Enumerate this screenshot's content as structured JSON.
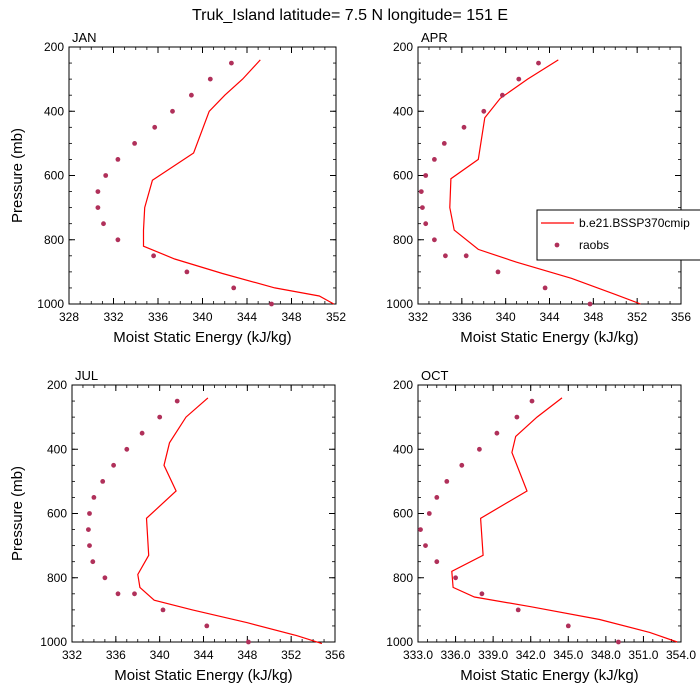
{
  "figure_title": "Truk_Island  latitude= 7.5 N longitude= 151 E",
  "colors": {
    "model_line": "#ff0000",
    "obs_marker": "#b0305a",
    "axis": "#000000"
  },
  "legend": {
    "placement": "right, between top-right and bottom-right panels",
    "entries": [
      {
        "label": "b.e21.BSSP370cmip",
        "style": "line"
      },
      {
        "label": "raobs",
        "style": "marker"
      }
    ]
  },
  "chart_data": [
    {
      "type": "line",
      "panel_label": "JAN",
      "xlabel": "Moist Static Energy (kJ/kg)",
      "ylabel": "Pressure (mb)",
      "xlim": [
        328,
        352
      ],
      "ylim": [
        1000,
        200
      ],
      "xticks": [
        "328",
        "332",
        "336",
        "340",
        "344",
        "348",
        "352"
      ],
      "yticks": [
        "200",
        "400",
        "600",
        "800",
        "1000"
      ],
      "series": [
        {
          "name": "b.e21.BSSP370cmip",
          "style": "line",
          "x": [
            345.2,
            343.6,
            342.0,
            340.6,
            339.2,
            335.5,
            334.8,
            334.7,
            334.7,
            337.5,
            341.8,
            346.5,
            350.5,
            351.8
          ],
          "y": [
            240,
            300,
            350,
            400,
            530,
            615,
            700,
            770,
            820,
            860,
            905,
            950,
            975,
            1000
          ]
        },
        {
          "name": "raobs",
          "style": "marker",
          "x": [
            342.6,
            340.7,
            339.0,
            337.3,
            335.7,
            333.9,
            332.4,
            331.3,
            330.6,
            330.6,
            331.1,
            332.4,
            335.6,
            338.6,
            342.8,
            346.2
          ],
          "y": [
            250,
            300,
            350,
            400,
            450,
            500,
            550,
            600,
            650,
            700,
            750,
            800,
            850,
            900,
            950,
            1000
          ]
        }
      ]
    },
    {
      "type": "line",
      "panel_label": "APR",
      "xlabel": "Moist Static Energy (kJ/kg)",
      "ylabel": "",
      "xlim": [
        332,
        356
      ],
      "ylim": [
        1000,
        200
      ],
      "xticks": [
        "332",
        "336",
        "340",
        "344",
        "348",
        "352",
        "356"
      ],
      "yticks": [
        "200",
        "400",
        "600",
        "800",
        "1000"
      ],
      "series": [
        {
          "name": "b.e21.BSSP370cmip",
          "style": "line",
          "x": [
            344.8,
            342.0,
            339.5,
            338.1,
            337.5,
            335.0,
            334.9,
            335.3,
            337.5,
            341.0,
            346.0,
            350.0,
            352.3
          ],
          "y": [
            240,
            300,
            360,
            420,
            550,
            610,
            700,
            770,
            830,
            870,
            920,
            970,
            1000
          ]
        },
        {
          "name": "raobs",
          "style": "marker",
          "x": [
            343.0,
            341.2,
            339.7,
            338.0,
            336.2,
            334.4,
            333.5,
            332.7,
            332.3,
            332.4,
            332.7,
            333.5,
            334.5,
            336.4,
            339.3,
            343.6,
            347.7
          ],
          "y": [
            250,
            300,
            350,
            400,
            450,
            500,
            550,
            600,
            650,
            700,
            750,
            800,
            850,
            850,
            900,
            950,
            1000
          ]
        }
      ]
    },
    {
      "type": "line",
      "panel_label": "JUL",
      "xlabel": "Moist Static Energy (kJ/kg)",
      "ylabel": "Pressure (mb)",
      "xlim": [
        332,
        356
      ],
      "ylim": [
        1000,
        200
      ],
      "xticks": [
        "332",
        "336",
        "340",
        "344",
        "348",
        "352",
        "356"
      ],
      "yticks": [
        "200",
        "400",
        "600",
        "800",
        "1000"
      ],
      "series": [
        {
          "name": "b.e21.BSSP370cmip",
          "style": "line",
          "x": [
            344.4,
            342.4,
            340.9,
            340.4,
            341.5,
            338.8,
            339.0,
            338.0,
            338.2,
            339.5,
            343.0,
            348.0,
            352.5,
            354.8
          ],
          "y": [
            240,
            300,
            380,
            450,
            530,
            615,
            730,
            790,
            830,
            870,
            900,
            940,
            980,
            1005
          ]
        },
        {
          "name": "raobs",
          "style": "marker",
          "x": [
            341.6,
            340.0,
            338.4,
            337.0,
            335.8,
            334.8,
            334.0,
            333.6,
            333.5,
            333.6,
            333.9,
            335.0,
            336.2,
            337.7,
            340.3,
            344.3,
            348.1
          ],
          "y": [
            250,
            300,
            350,
            400,
            450,
            500,
            550,
            600,
            650,
            700,
            750,
            800,
            850,
            850,
            900,
            950,
            1000
          ]
        }
      ]
    },
    {
      "type": "line",
      "panel_label": "OCT",
      "xlabel": "Moist Static Energy (kJ/kg)",
      "ylabel": "",
      "xlim": [
        333,
        354
      ],
      "ylim": [
        1000,
        200
      ],
      "xticks": [
        "333.0",
        "336.0",
        "339.0",
        "342.0",
        "345.0",
        "348.0",
        "351.0",
        "354.0"
      ],
      "yticks": [
        "200",
        "400",
        "600",
        "800",
        "1000"
      ],
      "series": [
        {
          "name": "b.e21.BSSP370cmip",
          "style": "line",
          "x": [
            344.5,
            342.5,
            340.8,
            340.5,
            341.7,
            338.0,
            338.2,
            335.7,
            335.8,
            337.5,
            342.0,
            347.5,
            351.5,
            353.7
          ],
          "y": [
            240,
            300,
            360,
            410,
            530,
            615,
            730,
            780,
            830,
            860,
            890,
            930,
            970,
            1000
          ]
        },
        {
          "name": "raobs",
          "style": "marker",
          "x": [
            342.1,
            340.9,
            339.3,
            337.9,
            336.5,
            335.3,
            334.5,
            333.9,
            333.2,
            333.6,
            334.5,
            336.0,
            338.1,
            341.0,
            345.0,
            349.0
          ],
          "y": [
            250,
            300,
            350,
            400,
            450,
            500,
            550,
            600,
            650,
            700,
            750,
            800,
            850,
            900,
            950,
            1000
          ]
        }
      ]
    }
  ]
}
